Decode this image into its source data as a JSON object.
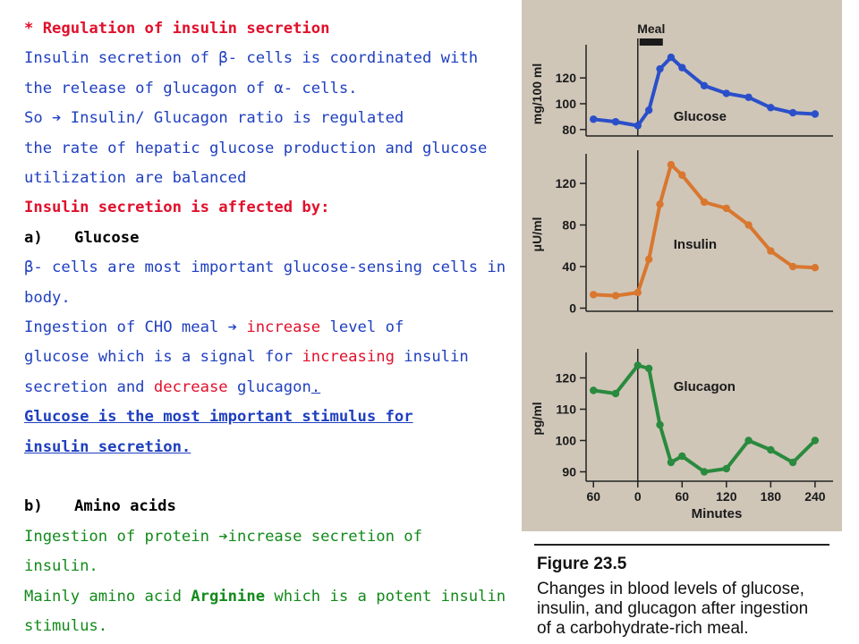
{
  "text": {
    "heading": "* Regulation of insulin secretion",
    "p1": [
      "Insulin secretion of β- cells is coordinated with",
      "the release of glucagon of α- cells."
    ],
    "p2_prefix": "So ",
    "p2_arrow": "➔",
    "p2_rest": " Insulin/ Glucagon ratio is regulated",
    "p3": [
      "the rate of hepatic glucose production and glucose",
      "utilization are balanced"
    ],
    "affected_by": "Insulin secretion is affected by:",
    "item_a_label": "a)",
    "item_a_title": "Glucose",
    "a_p1": [
      "β- cells are most important glucose-sensing cells in",
      "body."
    ],
    "a_p2_l1_pre": "Ingestion of CHO meal  ",
    "a_p2_l1_arrow": "➔",
    "a_p2_l1_red": " increase",
    "a_p2_l1_post": " level of",
    "a_p2_l2_pre": "glucose which is a signal for ",
    "a_p2_l2_red": "increasing",
    "a_p2_l2_post": " insulin",
    "a_p2_l3_pre": "secretion and ",
    "a_p2_l3_red": "decrease",
    "a_p2_l3_post": " glucagon",
    "a_p2_l3_dot": ".",
    "a_important": [
      "Glucose is the most important stimulus for",
      "insulin secretion."
    ],
    "item_b_label": "b)",
    "item_b_title": "Amino acids",
    "b_p1_l1_pre": "Ingestion of protein ",
    "b_p1_l1_arrow": "➔",
    "b_p1_l1_post": "increase secretion of",
    "b_p1_l2": "insulin.",
    "b_p2_l1_pre": "Mainly amino acid ",
    "b_p2_l1_bold": "Arginine",
    "b_p2_l1_post": " which is a potent insulin",
    "b_p2_l2": "stimulus."
  },
  "figure": {
    "title": "Figure 23.5",
    "caption": [
      "Changes in blood levels of glucose,",
      "insulin, and glucagon after ingestion",
      "of a carbohydrate-rich meal."
    ],
    "meal_label": "Meal",
    "x_label": "Minutes"
  },
  "chart_data": [
    {
      "type": "line",
      "title": "",
      "series": [
        {
          "name": "Glucose",
          "color": "#2b4fc9",
          "x": [
            -60,
            -30,
            0,
            15,
            30,
            45,
            60,
            90,
            120,
            150,
            180,
            210,
            240
          ],
          "y": [
            88,
            86,
            83,
            95,
            127,
            136,
            128,
            114,
            108,
            105,
            97,
            93,
            92
          ]
        }
      ],
      "ylabel": "mg/100 ml",
      "yticks": [
        80,
        100,
        120
      ],
      "ylim": [
        75,
        143
      ],
      "xlim": [
        -70,
        245
      ]
    },
    {
      "type": "line",
      "title": "",
      "series": [
        {
          "name": "Insulin",
          "color": "#d9772f",
          "x": [
            -60,
            -30,
            0,
            15,
            30,
            45,
            60,
            90,
            120,
            150,
            180,
            210,
            240
          ],
          "y": [
            13,
            12,
            15,
            47,
            100,
            138,
            128,
            102,
            96,
            80,
            55,
            40,
            39
          ]
        }
      ],
      "ylabel": "μU/ml",
      "yticks": [
        0,
        40,
        80,
        120
      ],
      "ylim": [
        -3,
        145
      ],
      "xlim": [
        -70,
        245
      ]
    },
    {
      "type": "line",
      "title": "",
      "series": [
        {
          "name": "Glucagon",
          "color": "#2a8a3e",
          "x": [
            -60,
            -30,
            0,
            15,
            30,
            45,
            60,
            90,
            120,
            150,
            180,
            210,
            240
          ],
          "y": [
            116,
            115,
            124,
            123,
            105,
            93,
            95,
            90,
            91,
            100,
            97,
            93,
            100
          ]
        }
      ],
      "ylabel": "pg/ml",
      "yticks": [
        90,
        100,
        110,
        120
      ],
      "ylim": [
        87,
        127
      ],
      "xlim": [
        -70,
        245
      ],
      "xticks": [
        -60,
        0,
        60,
        120,
        180,
        240
      ],
      "xtick_labels": [
        "60",
        "0",
        "60",
        "120",
        "180",
        "240"
      ],
      "xlabel": "Minutes"
    }
  ]
}
